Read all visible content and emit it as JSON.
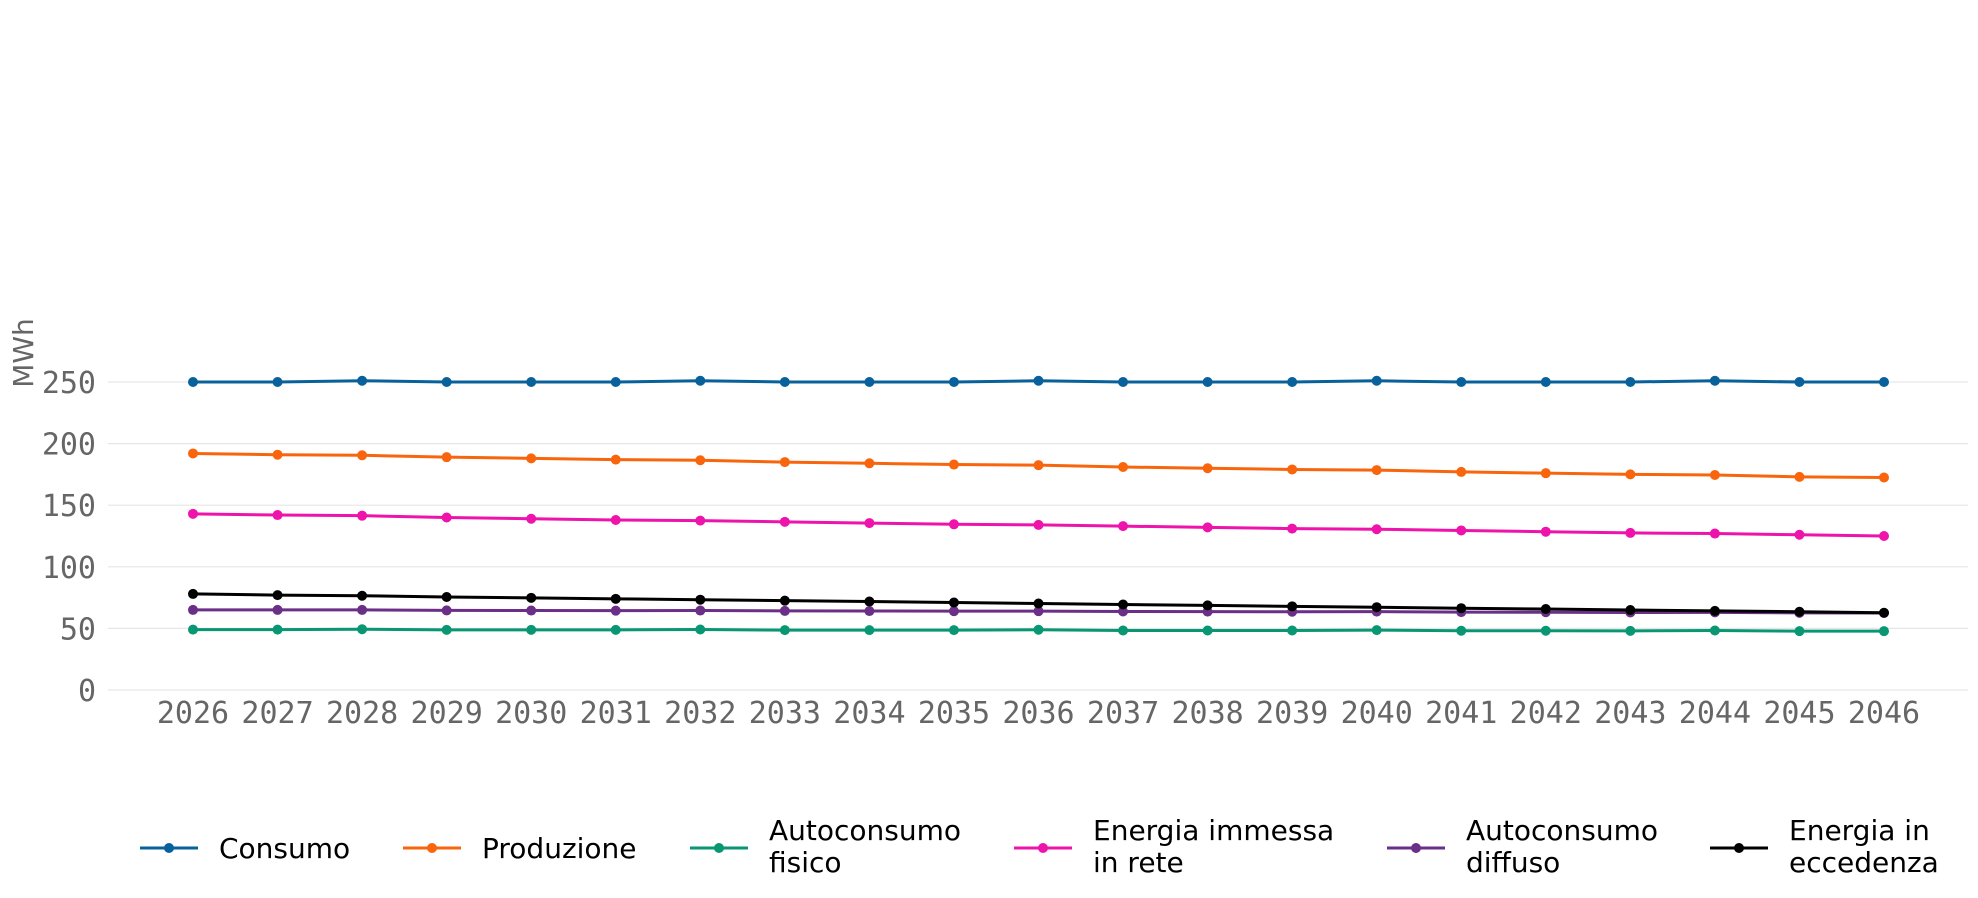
{
  "chart_data": {
    "type": "line",
    "title": "",
    "xlabel": "",
    "ylabel": "MWh",
    "ylim": [
      0,
      260
    ],
    "yticks": [
      0,
      50,
      100,
      150,
      200,
      250
    ],
    "grid": true,
    "legend_position": "bottom",
    "categories": [
      "2026",
      "2027",
      "2028",
      "2029",
      "2030",
      "2031",
      "2032",
      "2033",
      "2034",
      "2035",
      "2036",
      "2037",
      "2038",
      "2039",
      "2040",
      "2041",
      "2042",
      "2043",
      "2044",
      "2045",
      "2046"
    ],
    "series": [
      {
        "name": "Consumo",
        "color": "#08619a",
        "values": [
          250,
          250,
          251,
          250,
          250,
          250,
          251,
          250,
          250,
          250,
          251,
          250,
          250,
          250,
          251,
          250,
          250,
          250,
          251,
          250,
          250
        ]
      },
      {
        "name": "Produzione",
        "color": "#f8650d",
        "values": [
          192,
          191,
          190.5,
          189,
          188,
          187,
          186.5,
          185,
          184,
          183,
          182.5,
          181,
          180,
          179,
          178.5,
          177,
          176,
          175,
          174.5,
          173,
          172.5
        ]
      },
      {
        "name": "Autoconsumo fisico",
        "color": "#089673",
        "values": [
          49,
          49,
          49.3,
          48.8,
          48.8,
          48.8,
          49.1,
          48.6,
          48.6,
          48.6,
          48.9,
          48.3,
          48.3,
          48.3,
          48.6,
          48.1,
          48.1,
          48.0,
          48.3,
          47.8,
          47.8
        ]
      },
      {
        "name": "Energia immessa in rete",
        "color": "#ee13aa",
        "values": [
          143,
          142,
          141.5,
          140,
          139,
          138,
          137.5,
          136.5,
          135.5,
          134.5,
          134,
          133,
          132,
          131,
          130.5,
          129.5,
          128.5,
          127.5,
          127,
          126,
          125
        ]
      },
      {
        "name": "Autoconsumo diffuso",
        "color": "#6b2f87",
        "values": [
          65,
          65,
          65,
          64.6,
          64.5,
          64.4,
          64.5,
          64.2,
          64.1,
          64.0,
          64.0,
          63.7,
          63.6,
          63.5,
          63.6,
          63.2,
          63.1,
          62.9,
          63.0,
          62.6,
          62.5
        ]
      },
      {
        "name": "Energia in eccedenza",
        "color": "#000000",
        "values": [
          78,
          77,
          76.5,
          75.5,
          74.8,
          74,
          73.3,
          72.5,
          71.8,
          71,
          70.2,
          69.4,
          68.7,
          67.9,
          67.2,
          66.4,
          65.7,
          64.9,
          64.2,
          63.5,
          62.7
        ]
      }
    ],
    "legend_labels": [
      [
        "Consumo"
      ],
      [
        "Produzione"
      ],
      [
        "Autoconsumo",
        "fisico"
      ],
      [
        "Energia immessa",
        "in rete"
      ],
      [
        "Autoconsumo",
        "diffuso"
      ],
      [
        "Energia in",
        "eccedenza"
      ]
    ]
  }
}
